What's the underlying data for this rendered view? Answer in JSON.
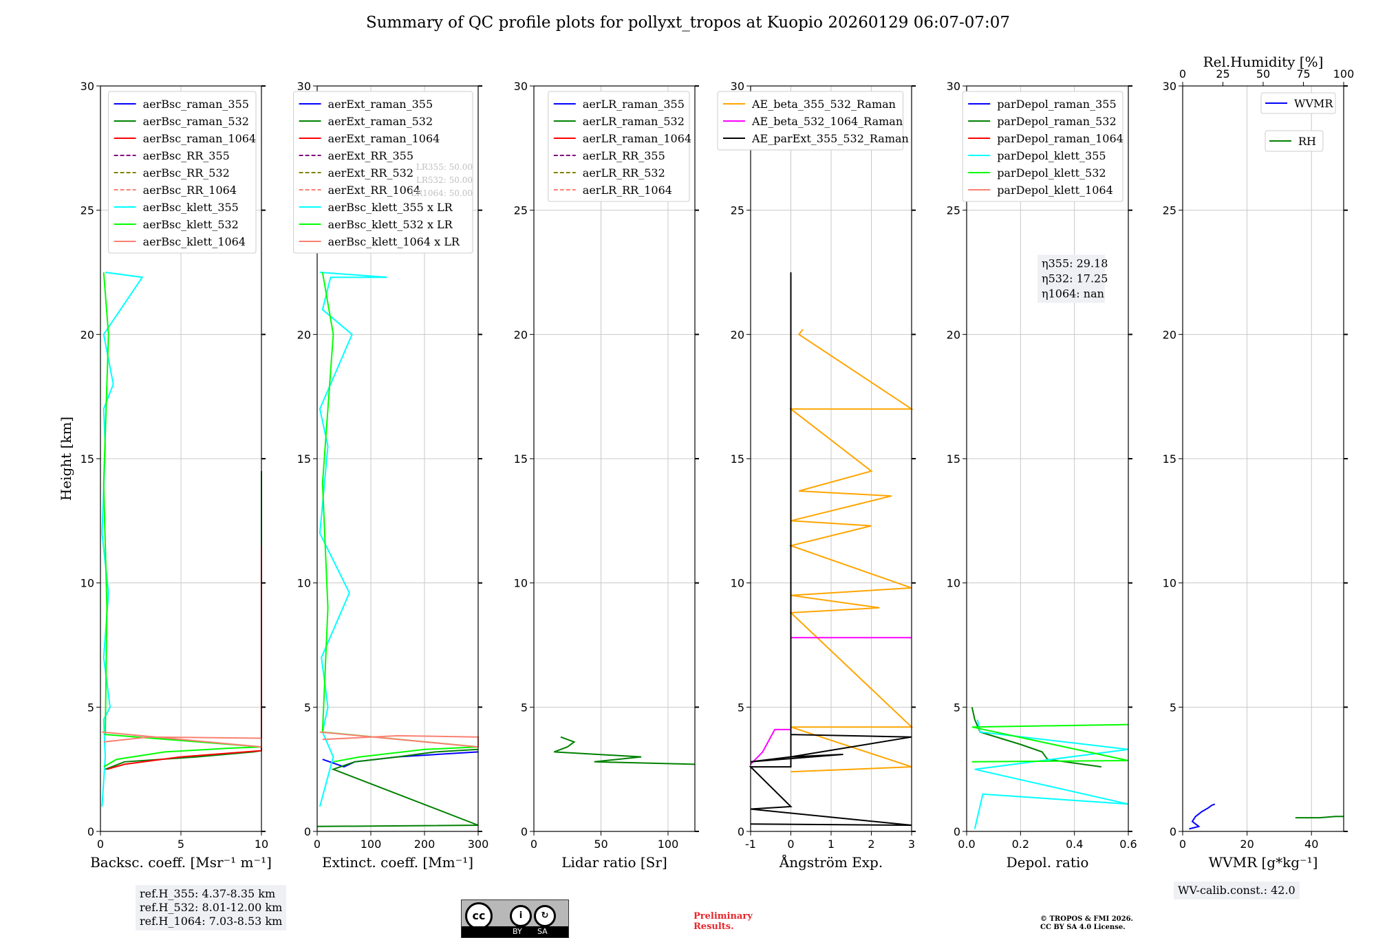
{
  "figure": {
    "title": "Summary of QC profile plots for pollyxt_tropos at Kuopio 20260129 06:07-07:07",
    "ylabel": "Height [km]",
    "ref_heights": [
      "ref.H_355: 4.37-8.35 km",
      "ref.H_532: 8.01-12.00 km",
      "ref.H_1064: 7.03-8.53 km"
    ],
    "wv_calib": "WV-calib.const.: 42.0",
    "license_labels": {
      "cc": "cc",
      "by": "BY",
      "sa": "SA"
    },
    "preliminary": [
      "Preliminary",
      "Results."
    ],
    "copyright": [
      "© TROPOS & FMI 2026.",
      "CC BY SA 4.0 License."
    ]
  },
  "chart_data": [
    {
      "type": "line",
      "id": "backscatter",
      "xlabel": "Backsc. coeff. [Msr⁻¹ m⁻¹]",
      "ylabel": "Height [km]",
      "xlim": [
        0,
        10
      ],
      "ylim": [
        0,
        30
      ],
      "xticks": [
        0,
        5,
        10
      ],
      "yticks": [
        0,
        5,
        10,
        15,
        20,
        25,
        30
      ],
      "legend": "top-right",
      "series": [
        {
          "name": "aerBsc_raman_355",
          "color": "#0000ff",
          "dash": "",
          "x": [],
          "y": []
        },
        {
          "name": "aerBsc_raman_532",
          "color": "#008000",
          "dash": "",
          "x": [
            0.3,
            1.5,
            6.0,
            9.5,
            10,
            10,
            10,
            10,
            10
          ],
          "y": [
            2.5,
            2.8,
            3.0,
            3.2,
            3.25,
            4.0,
            9.1,
            11.5,
            14.5
          ]
        },
        {
          "name": "aerBsc_raman_1064",
          "color": "#ff0000",
          "dash": "",
          "x": [
            0.4,
            1.5,
            5.0,
            9.0,
            10,
            10,
            10
          ],
          "y": [
            2.5,
            2.7,
            3.0,
            3.2,
            3.25,
            4.0,
            11.5
          ]
        },
        {
          "name": "aerBsc_RR_355",
          "color": "#800080",
          "dash": "6,3",
          "x": [],
          "y": []
        },
        {
          "name": "aerBsc_RR_532",
          "color": "#808000",
          "dash": "6,3",
          "x": [],
          "y": []
        },
        {
          "name": "aerBsc_RR_1064",
          "color": "#fa8072",
          "dash": "6,3",
          "x": [],
          "y": []
        },
        {
          "name": "aerBsc_klett_355",
          "color": "#00ffff",
          "dash": "",
          "x": [
            0.1,
            0.3,
            0.2,
            0.6,
            0.2,
            0.5,
            0.1,
            0.3,
            0.2,
            0.8,
            0.2,
            2.6,
            0.3
          ],
          "y": [
            1,
            3,
            4.5,
            5,
            7,
            9.6,
            12,
            15.5,
            17,
            18,
            20,
            22.3,
            22.5
          ]
        },
        {
          "name": "aerBsc_klett_532",
          "color": "#00ff00",
          "dash": "",
          "x": [
            0.2,
            1.0,
            4.0,
            8.0,
            10,
            0.3,
            0.4,
            0.2,
            0.5,
            0.2
          ],
          "y": [
            2.6,
            2.9,
            3.2,
            3.35,
            3.4,
            3.9,
            9.0,
            14.0,
            20.0,
            22.5
          ]
        },
        {
          "name": "aerBsc_klett_1064",
          "color": "#fa8072",
          "dash": "",
          "x": [
            0.2,
            3.0,
            10,
            10,
            0.1
          ],
          "y": [
            3.6,
            3.8,
            3.75,
            3.4,
            4.0
          ]
        }
      ]
    },
    {
      "type": "line",
      "id": "extinction",
      "xlabel": "Extinct. coeff. [Mm⁻¹]",
      "xlim": [
        0,
        300
      ],
      "ylim": [
        0,
        30
      ],
      "xticks": [
        0,
        100,
        200,
        300
      ],
      "yticks": [
        0,
        5,
        10,
        15,
        20,
        25,
        30
      ],
      "legend": "top-right",
      "lr_notes": [
        "LR355: 50.00",
        "LR532: 50.00",
        "LR1064: 50.00"
      ],
      "series": [
        {
          "name": "aerExt_raman_355",
          "color": "#0000ff",
          "dash": "",
          "x": [
            10,
            50,
            70,
            150,
            260,
            300
          ],
          "y": [
            2.9,
            2.6,
            2.8,
            3.0,
            3.15,
            3.2
          ]
        },
        {
          "name": "aerExt_raman_532",
          "color": "#008000",
          "dash": "",
          "x": [
            0,
            300,
            30,
            70,
            150,
            220,
            300
          ],
          "y": [
            0.2,
            0.25,
            2.5,
            2.8,
            3.0,
            3.2,
            3.3
          ]
        },
        {
          "name": "aerExt_raman_1064",
          "color": "#ff0000",
          "dash": "",
          "x": [],
          "y": []
        },
        {
          "name": "aerExt_RR_355",
          "color": "#800080",
          "dash": "6,3",
          "x": [],
          "y": []
        },
        {
          "name": "aerExt_RR_532",
          "color": "#808000",
          "dash": "6,3",
          "x": [],
          "y": []
        },
        {
          "name": "aerExt_RR_1064",
          "color": "#fa8072",
          "dash": "6,3",
          "x": [],
          "y": []
        },
        {
          "name": "aerBsc_klett_355 x LR",
          "color": "#00ffff",
          "dash": "",
          "x": [
            5,
            30,
            10,
            20,
            8,
            60,
            5,
            20,
            5,
            65,
            10,
            25,
            130,
            5
          ],
          "y": [
            1,
            3,
            4,
            5,
            7,
            9.6,
            12,
            15.5,
            17,
            20,
            21,
            22.3,
            22.3,
            22.5
          ]
        },
        {
          "name": "aerBsc_klett_532 x LR",
          "color": "#00ff00",
          "dash": "",
          "x": [
            30,
            80,
            200,
            300,
            10,
            20,
            10,
            30,
            10
          ],
          "y": [
            2.8,
            3.0,
            3.3,
            3.4,
            4.0,
            9.0,
            14,
            20,
            22.5
          ]
        },
        {
          "name": "aerBsc_klett_1064 x LR",
          "color": "#fa8072",
          "dash": "",
          "x": [
            10,
            150,
            300,
            300,
            5
          ],
          "y": [
            3.7,
            3.85,
            3.8,
            3.4,
            4.0
          ]
        }
      ]
    },
    {
      "type": "line",
      "id": "lidar_ratio",
      "xlabel": "Lidar ratio [Sr]",
      "xlim": [
        0,
        120
      ],
      "ylim": [
        0,
        30
      ],
      "xticks": [
        0,
        50,
        100
      ],
      "yticks": [
        0,
        5,
        10,
        15,
        20,
        25,
        30
      ],
      "legend": "top-right",
      "series": [
        {
          "name": "aerLR_raman_355",
          "color": "#0000ff",
          "dash": "",
          "x": [],
          "y": []
        },
        {
          "name": "aerLR_raman_532",
          "color": "#008000",
          "dash": "",
          "x": [
            20,
            30,
            25,
            15,
            80,
            45,
            120
          ],
          "y": [
            3.8,
            3.6,
            3.4,
            3.2,
            3.0,
            2.8,
            2.7
          ]
        },
        {
          "name": "aerLR_raman_1064",
          "color": "#ff0000",
          "dash": "",
          "x": [],
          "y": []
        },
        {
          "name": "aerLR_RR_355",
          "color": "#800080",
          "dash": "6,3",
          "x": [],
          "y": []
        },
        {
          "name": "aerLR_RR_532",
          "color": "#808000",
          "dash": "6,3",
          "x": [],
          "y": []
        },
        {
          "name": "aerLR_RR_1064",
          "color": "#fa8072",
          "dash": "6,3",
          "x": [],
          "y": []
        }
      ]
    },
    {
      "type": "line",
      "id": "angstrom",
      "xlabel": "Ångström Exp.",
      "xlim": [
        -1,
        3
      ],
      "ylim": [
        0,
        30
      ],
      "xticks": [
        -1,
        0,
        1,
        2,
        3
      ],
      "yticks": [
        0,
        5,
        10,
        15,
        20,
        25,
        30
      ],
      "legend": "top-right",
      "series": [
        {
          "name": "AE_beta_355_532_Raman",
          "color": "#ffa500",
          "dash": "",
          "x": [
            0,
            3,
            0,
            3,
            0,
            2.2,
            0,
            3,
            0,
            2,
            0,
            2.5,
            0.2,
            2,
            0,
            3,
            0.2,
            0.3
          ],
          "y": [
            2.4,
            2.6,
            4.2,
            4.2,
            8.8,
            9.0,
            9.5,
            9.8,
            11.5,
            12.3,
            12.5,
            13.5,
            13.7,
            14.5,
            17.0,
            17.0,
            20.0,
            20.2
          ]
        },
        {
          "name": "AE_beta_532_1064_Raman",
          "color": "#ff00ff",
          "dash": "",
          "x": [
            -1,
            -0.7,
            -0.4,
            0,
            0,
            3
          ],
          "y": [
            2.7,
            3.2,
            4.1,
            4.1,
            7.8,
            7.8
          ]
        },
        {
          "name": "AE_parExt_355_532_Raman",
          "color": "#000000",
          "dash": "",
          "x": [
            -1,
            3,
            -1,
            0,
            -1,
            0,
            0,
            3,
            0,
            1.3,
            -1,
            0,
            0
          ],
          "y": [
            0.3,
            0.25,
            0.9,
            1.0,
            2.6,
            2.6,
            3.9,
            3.8,
            3.0,
            3.1,
            2.8,
            3.0,
            22.5
          ]
        }
      ]
    },
    {
      "type": "line",
      "id": "depolarization",
      "xlabel": "Depol. ratio",
      "xlim": [
        0,
        0.6
      ],
      "ylim": [
        0,
        30
      ],
      "xticks": [
        0.0,
        0.2,
        0.4,
        0.6
      ],
      "yticks": [
        0,
        5,
        10,
        15,
        20,
        25,
        30
      ],
      "legend": "top-right",
      "eta_labels": [
        "η355: 29.18",
        "η532: 17.25",
        "η1064: nan"
      ],
      "series": [
        {
          "name": "parDepol_raman_355",
          "color": "#0000ff",
          "dash": "",
          "x": [],
          "y": []
        },
        {
          "name": "parDepol_raman_532",
          "color": "#008000",
          "dash": "",
          "x": [
            0.02,
            0.03,
            0.05,
            0.2,
            0.28,
            0.3,
            0.5
          ],
          "y": [
            5.0,
            4.5,
            4.0,
            3.5,
            3.2,
            2.9,
            2.6
          ]
        },
        {
          "name": "parDepol_raman_1064",
          "color": "#ff0000",
          "dash": "",
          "x": [],
          "y": []
        },
        {
          "name": "parDepol_klett_355",
          "color": "#00ffff",
          "dash": "",
          "x": [
            0.03,
            0.06,
            0.6,
            0.03,
            0.6,
            0.05,
            0.04
          ],
          "y": [
            0.1,
            1.5,
            1.1,
            2.5,
            3.3,
            4.0,
            4.5
          ]
        },
        {
          "name": "parDepol_klett_532",
          "color": "#00ff00",
          "dash": "",
          "x": [
            0.02,
            0.6,
            0.02,
            0.6
          ],
          "y": [
            2.8,
            2.85,
            4.2,
            4.3
          ]
        },
        {
          "name": "parDepol_klett_1064",
          "color": "#fa8072",
          "dash": "",
          "x": [],
          "y": []
        }
      ]
    },
    {
      "type": "line",
      "id": "water_vapor",
      "xlabel": "WVMR [g*kg⁻¹]",
      "xlim": [
        0,
        50
      ],
      "ylim": [
        0,
        30
      ],
      "xticks": [
        0,
        20,
        40
      ],
      "yticks": [
        0,
        5,
        10,
        15,
        20,
        25,
        30
      ],
      "top_axis": {
        "label": "Rel.Humidity [%]",
        "lim": [
          0,
          100
        ],
        "ticks": [
          0,
          25,
          50,
          75,
          100
        ]
      },
      "legend": "top-right",
      "series": [
        {
          "name": "WVMR",
          "color": "#0000ff",
          "dash": "",
          "x": [
            2,
            5,
            3,
            4,
            6,
            8,
            9,
            10
          ],
          "y": [
            0.1,
            0.2,
            0.4,
            0.6,
            0.8,
            0.95,
            1.05,
            1.1
          ]
        },
        {
          "name": "RH",
          "color": "#008000",
          "dash": "",
          "rh_x": [
            70,
            85,
            95,
            100
          ],
          "y": [
            0.55,
            0.55,
            0.6,
            0.6
          ]
        }
      ]
    }
  ]
}
